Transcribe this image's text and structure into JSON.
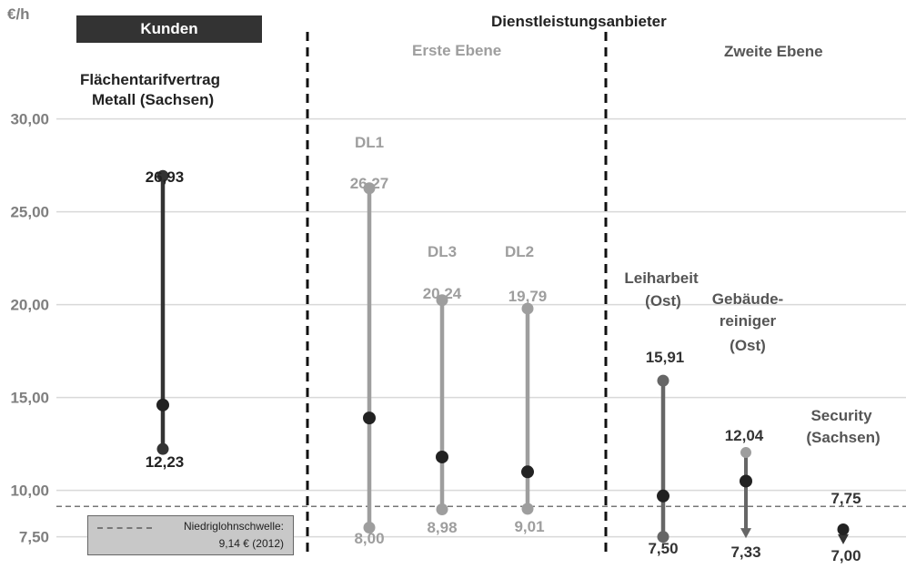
{
  "unit_label": "€/h",
  "header": {
    "kunden": "Kunden",
    "dienstleister": "Dienstleistungsanbieter",
    "erste_ebene": "Erste Ebene",
    "zweite_ebene": "Zweite Ebene",
    "tarif_line1": "Flächentarifvertrag",
    "tarif_line2": "Metall (Sachsen)"
  },
  "legend": {
    "line1": "Niedriglohnschwelle:",
    "line2": "9,14 € (2012)"
  },
  "colors": {
    "dark": "#333333",
    "light_gray": "#9e9e9e",
    "mid_gray": "#666666",
    "grid": "#d9d9d9",
    "axis_label": "#7f7f7f"
  },
  "chart_data": {
    "type": "range",
    "ylabel": "€/h",
    "ylim": [
      7.0,
      30.5
    ],
    "yticks": [
      {
        "value": 7.5,
        "label": "7,50"
      },
      {
        "value": 10,
        "label": "10,00"
      },
      {
        "value": 15,
        "label": "15,00"
      },
      {
        "value": 20,
        "label": "20,00"
      },
      {
        "value": 25,
        "label": "25,00"
      },
      {
        "value": 30,
        "label": "30,00"
      }
    ],
    "threshold": {
      "value": 9.14,
      "label": "Niedriglohnschwelle: 9,14 € (2012)"
    },
    "series": [
      {
        "id": "metall",
        "name": "Flächentarifvertrag Metall (Sachsen)",
        "color": "#333333",
        "min": 12.23,
        "max": 26.93,
        "mid": 14.6,
        "min_label": "12,23",
        "max_label": "26,93",
        "arrow_down": false,
        "top_label": ""
      },
      {
        "id": "dl1",
        "name": "DL1",
        "color": "#9e9e9e",
        "min": 8.0,
        "max": 26.27,
        "mid": 13.9,
        "min_label": "8,00",
        "max_label": "26,27",
        "arrow_down": false,
        "top_label": "DL1"
      },
      {
        "id": "dl3",
        "name": "DL3",
        "color": "#9e9e9e",
        "min": 8.98,
        "max": 20.24,
        "mid": 11.8,
        "min_label": "8,98",
        "max_label": "20,24",
        "arrow_down": false,
        "top_label": "DL3"
      },
      {
        "id": "dl2",
        "name": "DL2",
        "color": "#9e9e9e",
        "min": 9.01,
        "max": 19.79,
        "mid": 11.0,
        "min_label": "9,01",
        "max_label": "19,79",
        "arrow_down": false,
        "top_label": "DL2"
      },
      {
        "id": "leiharbeit",
        "name": "Leiharbeit (Ost)",
        "color": "#666666",
        "min": 7.5,
        "max": 15.91,
        "mid": 9.7,
        "min_label": "7,50",
        "max_label": "15,91",
        "arrow_down": false,
        "top_label": "Leiharbeit (Ost)"
      },
      {
        "id": "gebaeude",
        "name": "Gebäudereiniger (Ost)",
        "color": "#666666",
        "min": 7.33,
        "max": 12.04,
        "mid": 10.5,
        "min_label": "7,33",
        "max_label": "12,04",
        "arrow_down": true,
        "top_label": "Gebäude-reiniger (Ost)"
      },
      {
        "id": "security",
        "name": "Security (Sachsen)",
        "color": "#333333",
        "min": 7.0,
        "max": 7.75,
        "mid": null,
        "min_label": "7,00",
        "max_label": "7,75",
        "arrow_down": true,
        "top_label": "Security (Sachsen)"
      }
    ]
  }
}
